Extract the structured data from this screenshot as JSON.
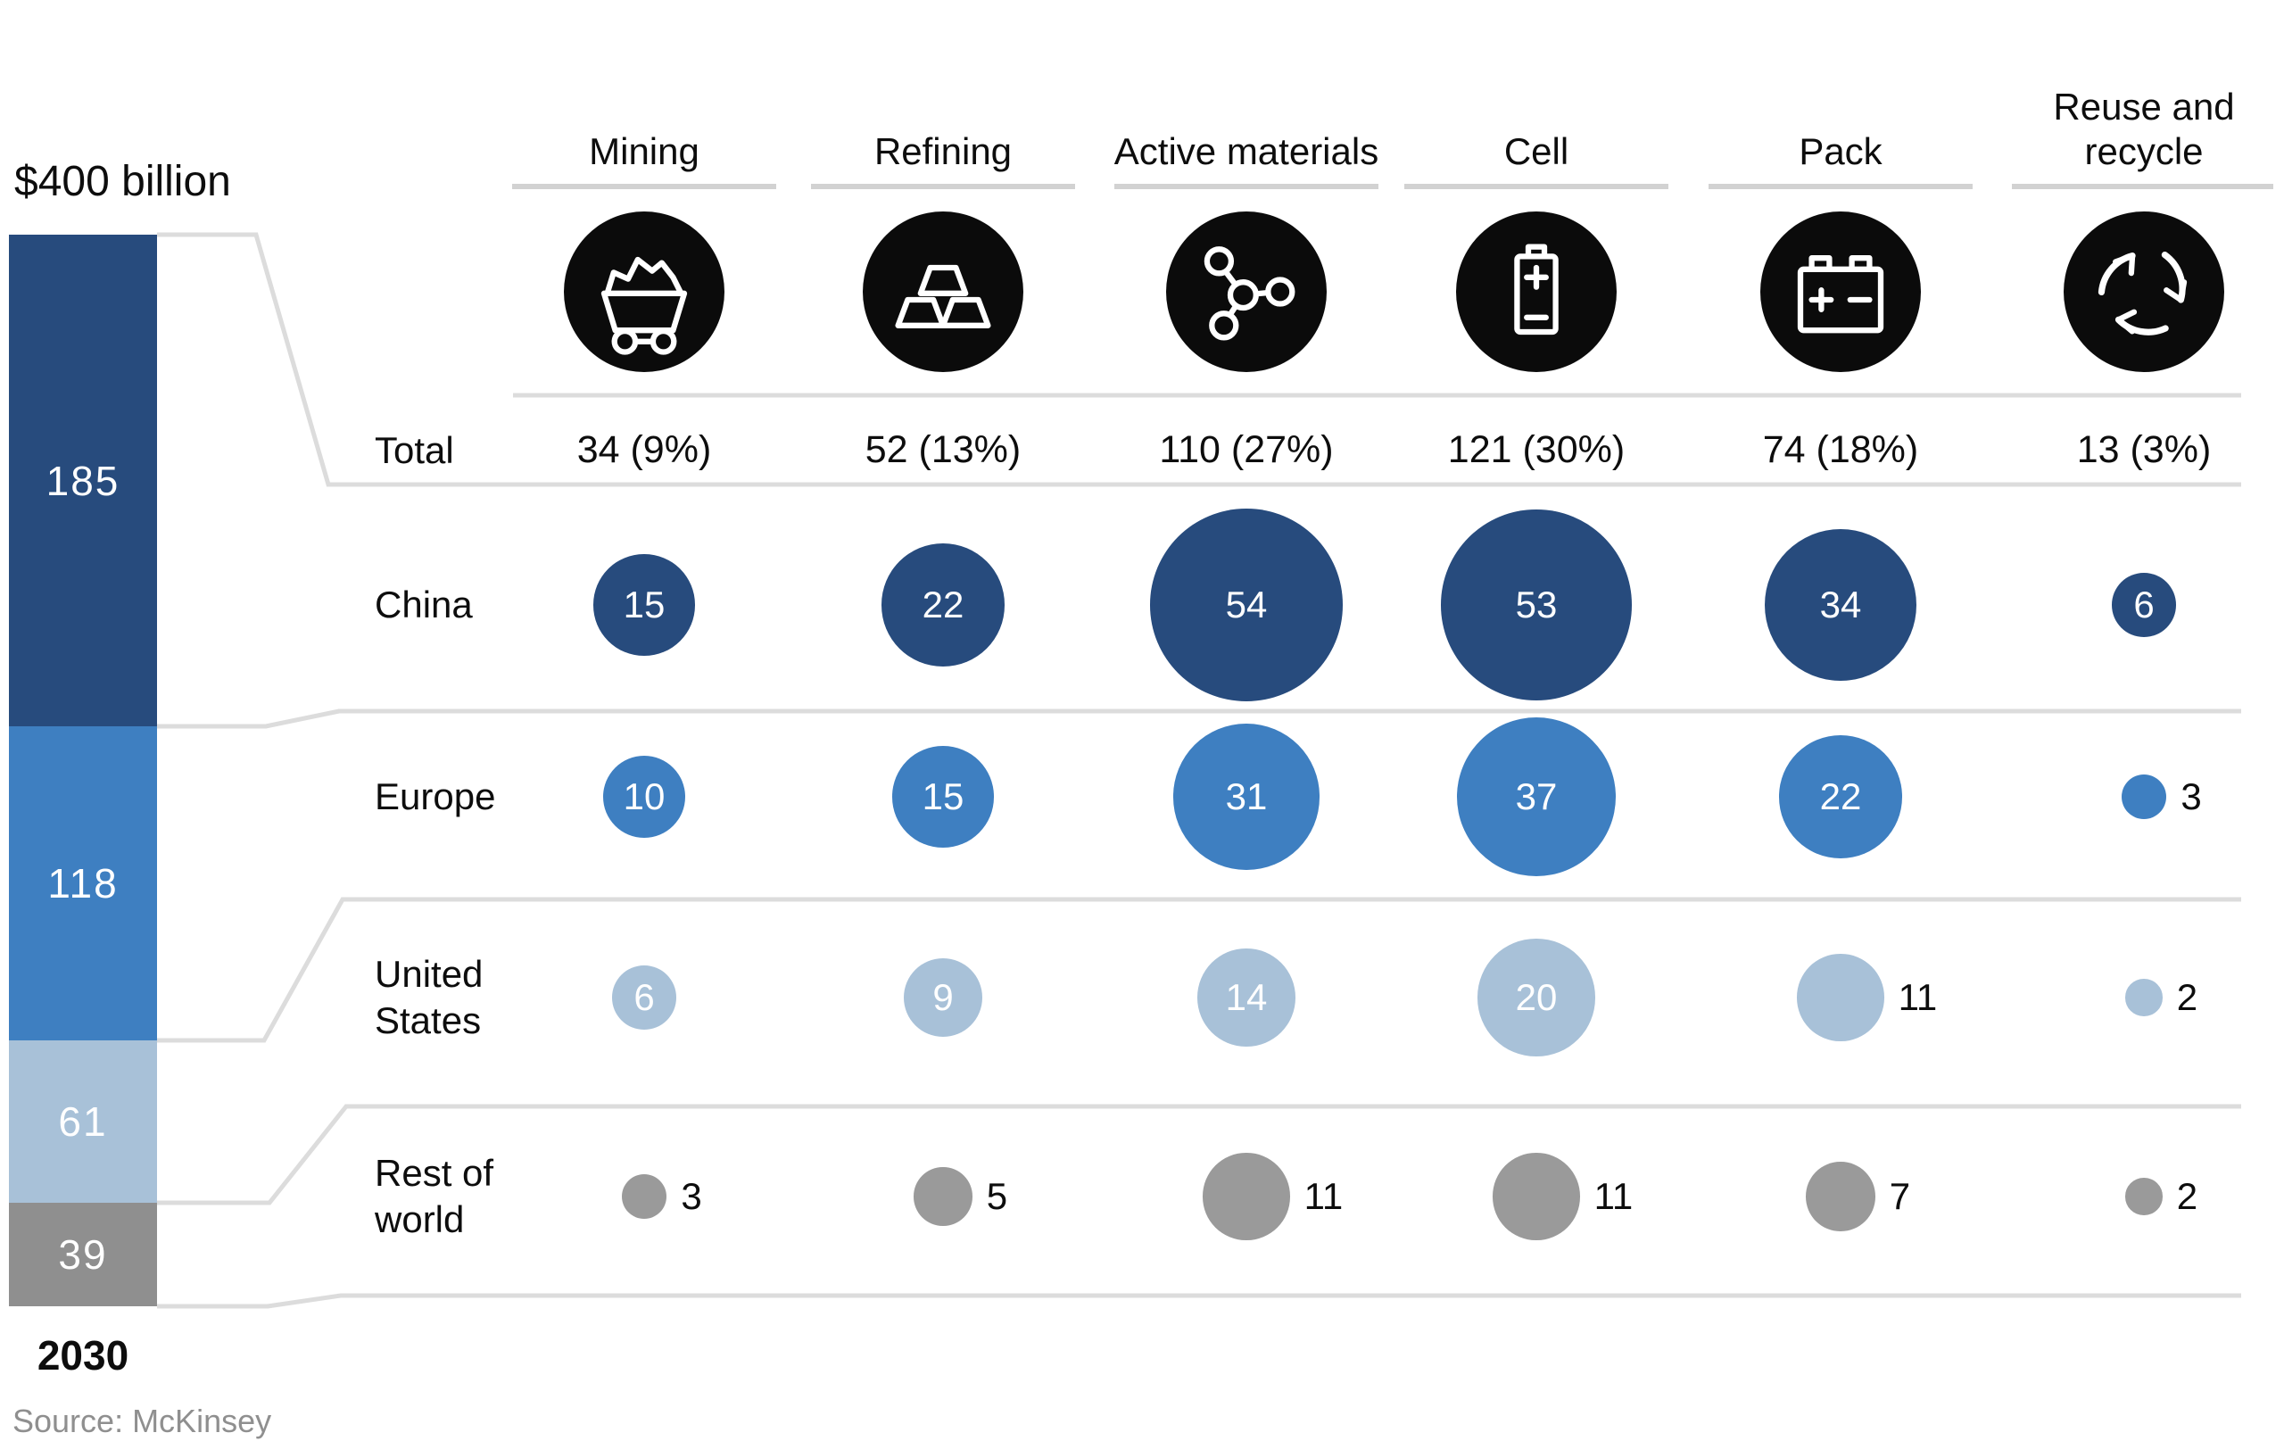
{
  "title": "$400 billion",
  "year": "2030",
  "source": "Source: McKinsey",
  "colors": {
    "china": "#274b7d",
    "europe": "#3e7fc1",
    "united_states": "#a8c1d8",
    "rest_of_world": "#9a9a9a",
    "bar_rest_of_world": "#8f8f8f",
    "line_gray": "#dcdcdc",
    "underline_gray": "#d2d2d2",
    "icon_black": "#0b0b0b",
    "source_text": "#8f8f8f"
  },
  "columns": [
    {
      "label": "Mining",
      "icon": "mining-cart-icon"
    },
    {
      "label": "Refining",
      "icon": "ingots-icon"
    },
    {
      "label": "Active materials",
      "icon": "molecule-icon"
    },
    {
      "label": "Cell",
      "icon": "battery-cell-icon"
    },
    {
      "label": "Pack",
      "icon": "battery-pack-icon"
    },
    {
      "label": "Reuse and recycle",
      "icon": "recycle-icon"
    }
  ],
  "total_row": {
    "label": "Total",
    "values": [
      "34 (9%)",
      "52 (13%)",
      "110 (27%)",
      "121 (30%)",
      "74 (18%)",
      "13 (3%)"
    ]
  },
  "regions": [
    {
      "name": "China",
      "bar_value": 185,
      "color_key": "china",
      "values": [
        15,
        22,
        54,
        53,
        34,
        6
      ],
      "label_inside": [
        true,
        true,
        true,
        true,
        true,
        true
      ]
    },
    {
      "name": "Europe",
      "bar_value": 118,
      "color_key": "europe",
      "values": [
        10,
        15,
        31,
        37,
        22,
        3
      ],
      "label_inside": [
        true,
        true,
        true,
        true,
        true,
        false
      ]
    },
    {
      "name": "United States",
      "bar_value": 61,
      "color_key": "united_states",
      "values": [
        6,
        9,
        14,
        20,
        11,
        2
      ],
      "label_inside": [
        true,
        true,
        true,
        true,
        false,
        false
      ]
    },
    {
      "name": "Rest of world",
      "bar_value": 39,
      "color_key": "rest_of_world",
      "values": [
        3,
        5,
        11,
        11,
        7,
        2
      ],
      "label_inside": [
        false,
        false,
        false,
        false,
        false,
        false
      ]
    }
  ],
  "chart_data": {
    "type": "bubble",
    "title": "$400 billion",
    "subtitle_year": "2030",
    "source": "Source: McKinsey",
    "unit": "USD billions",
    "grand_total": 400,
    "categories": [
      "Mining",
      "Refining",
      "Active materials",
      "Cell",
      "Pack",
      "Reuse and recycle"
    ],
    "column_totals": [
      34,
      52,
      110,
      121,
      74,
      13
    ],
    "column_shares_pct": [
      9,
      13,
      27,
      30,
      18,
      3
    ],
    "series": [
      {
        "name": "China",
        "total": 185,
        "values": [
          15,
          22,
          54,
          53,
          34,
          6
        ]
      },
      {
        "name": "Europe",
        "total": 118,
        "values": [
          10,
          15,
          31,
          37,
          22,
          3
        ]
      },
      {
        "name": "United States",
        "total": 61,
        "values": [
          6,
          9,
          14,
          20,
          11,
          2
        ]
      },
      {
        "name": "Rest of world",
        "total": 39,
        "values": [
          3,
          5,
          11,
          11,
          7,
          2
        ]
      }
    ],
    "layout_hints": {
      "bubble_area_proportional_to_value": true,
      "stacked_bar_left": true,
      "legend": "none",
      "grid": "row separator lines only"
    }
  }
}
